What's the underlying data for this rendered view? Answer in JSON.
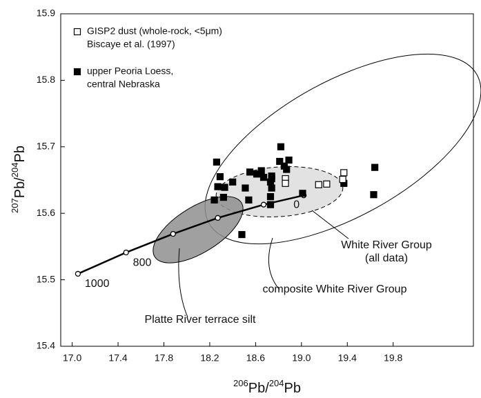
{
  "chart_data": {
    "type": "scatter",
    "xlabel": [
      {
        "text": "206",
        "sup": true
      },
      {
        "text": "Pb/",
        "sup": false
      },
      {
        "text": "204",
        "sup": true
      },
      {
        "text": "Pb",
        "sup": false
      }
    ],
    "ylabel": [
      {
        "text": "207",
        "sup": true
      },
      {
        "text": "Pb/",
        "sup": false
      },
      {
        "text": "204",
        "sup": true
      },
      {
        "text": "Pb",
        "sup": false
      }
    ],
    "xlim": [
      16.9,
      20.5
    ],
    "ylim": [
      15.4,
      15.9
    ],
    "xticks": [
      {
        "value": 17,
        "label": "17.0"
      },
      17.4,
      17.8,
      18.2,
      18.6,
      {
        "value": 19,
        "label": "19.0"
      },
      19.4,
      19.8
    ],
    "yticks": [
      15.4,
      15.5,
      15.6,
      15.7,
      15.8,
      15.9
    ],
    "series": [
      {
        "name": [
          "GISP2 dust (whole-rock, <5μm)",
          "Biscaye et al. (1997)"
        ],
        "marker": "open",
        "color": "#000000",
        "x": [
          18.86,
          18.86,
          19.15,
          19.22,
          19.37,
          19.36
        ],
        "y": [
          15.652,
          15.645,
          15.643,
          15.644,
          15.661,
          15.651
        ]
      },
      {
        "name": [
          "upper Peoria Loess,",
          "central Nebraska"
        ],
        "marker": "filled",
        "color": "#000000",
        "x": [
          18.26,
          18.29,
          18.27,
          18.33,
          18.24,
          18.32,
          18.48,
          18.4,
          18.51,
          18.54,
          18.61,
          18.65,
          18.67,
          18.73,
          18.74,
          18.74,
          18.73,
          18.73,
          18.81,
          18.82,
          18.85,
          18.87,
          18.89,
          19.01,
          19.37,
          19.64,
          19.63,
          18.74,
          18.55
        ],
        "y": [
          15.677,
          15.655,
          15.64,
          15.639,
          15.62,
          15.624,
          15.568,
          15.647,
          15.638,
          15.62,
          15.659,
          15.664,
          15.654,
          15.647,
          15.656,
          15.638,
          15.625,
          15.613,
          15.678,
          15.7,
          15.671,
          15.666,
          15.68,
          15.63,
          15.645,
          15.669,
          15.628,
          15.652,
          15.662
        ]
      }
    ],
    "curve": {
      "x": [
        17.05,
        17.47,
        17.88,
        18.27,
        18.67,
        19.02
      ],
      "y": [
        15.509,
        15.541,
        15.569,
        15.593,
        15.613,
        15.627
      ],
      "labels": [
        "1000",
        "800",
        null,
        null,
        null,
        "0"
      ]
    },
    "annotations": [
      "White River Group",
      "(all data)",
      "composite White River Group",
      "Platte River terrace silt"
    ]
  }
}
